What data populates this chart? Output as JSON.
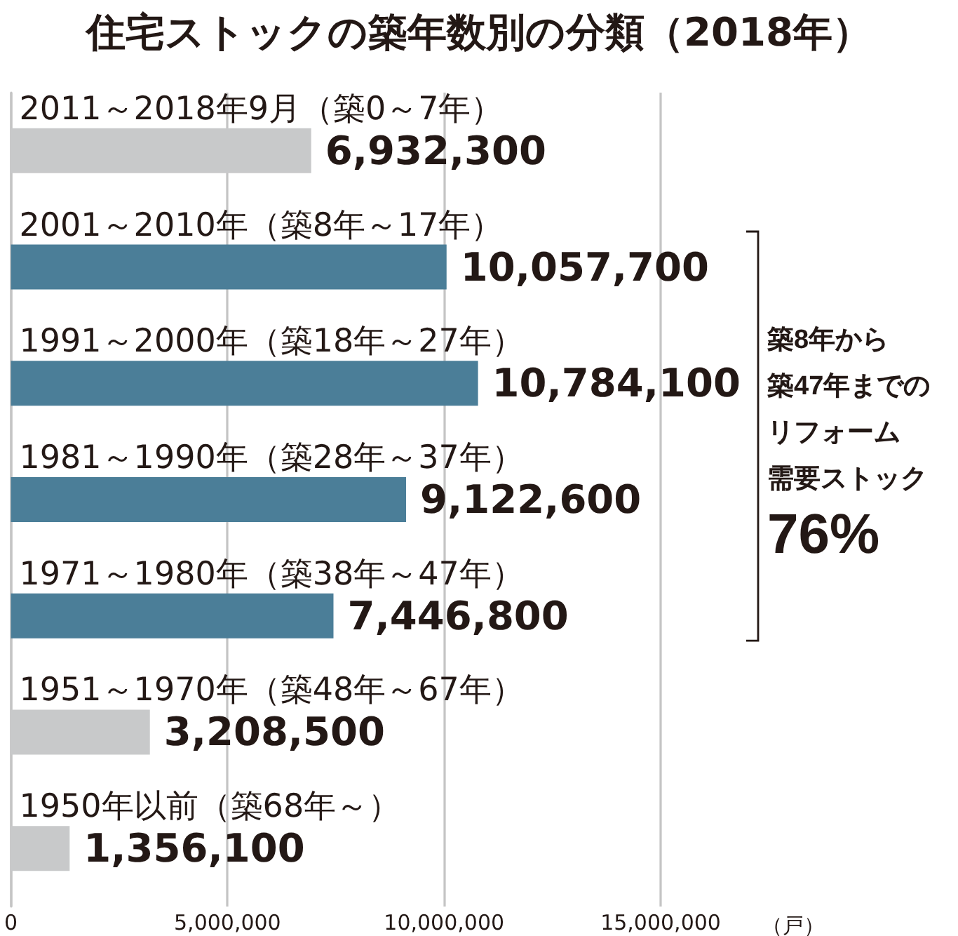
{
  "chart_data": {
    "type": "bar",
    "orientation": "horizontal",
    "title": "住宅ストックの築年数別の分類（2018年）",
    "xlabel": "（戸）",
    "categories": [
      "2011～2018年9月（築0～7年）",
      "2001～2010年（築8年～17年）",
      "1991～2000年（築18年～27年）",
      "1981～1990年（築28年～37年）",
      "1971～1980年（築38年～47年）",
      "1951～1970年（築48年～67年）",
      "1950年以前（築68年～）"
    ],
    "values": [
      6932300,
      10057700,
      10784100,
      9122600,
      7446800,
      3208500,
      1356100
    ],
    "value_labels": [
      "6,932,300",
      "10,057,700",
      "10,784,100",
      "9,122,600",
      "7,446,800",
      "3,208,500",
      "1,356,100"
    ],
    "colors": [
      "#c8c9ca",
      "#4b7e98",
      "#4b7e98",
      "#4b7e98",
      "#4b7e98",
      "#c8c9ca",
      "#c8c9ca"
    ],
    "xlim": [
      0,
      15000000
    ],
    "xticks": [
      0,
      {
        "value": 5000000,
        "label": "5,000,000"
      },
      {
        "value": 10000000,
        "label": "10,000,000"
      },
      {
        "value": 15000000,
        "label": "15,000,000"
      }
    ],
    "grid": "x",
    "annotations": [
      "築8年から",
      "築47年までの",
      "リフォーム",
      "需要ストック",
      "76%"
    ]
  }
}
